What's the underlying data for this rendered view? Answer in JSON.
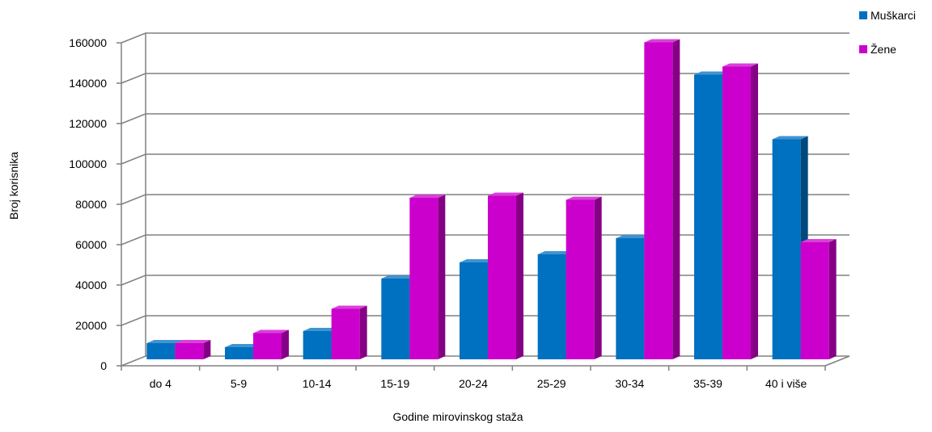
{
  "chart_data": {
    "type": "bar",
    "categories": [
      "do 4",
      "5-9",
      "10-14",
      "15-19",
      "20-24",
      "25-29",
      "30-34",
      "35-39",
      "40 i više"
    ],
    "series": [
      {
        "name": "Muškarci",
        "color": "#0070C0",
        "values": [
          8000,
          6000,
          14000,
          40000,
          48000,
          52000,
          60000,
          141000,
          109000
        ]
      },
      {
        "name": "Žene",
        "color": "#CC00CC",
        "values": [
          8000,
          13000,
          25000,
          80000,
          81000,
          79000,
          157000,
          145000,
          58000
        ]
      }
    ],
    "xlabel": "Godine mirovinskog staža",
    "ylabel": "Broj korisnika",
    "ylim": [
      0,
      160000
    ],
    "yticks": [
      0,
      20000,
      40000,
      60000,
      80000,
      100000,
      120000,
      140000,
      160000
    ],
    "grid": true,
    "legend": "top-right"
  }
}
